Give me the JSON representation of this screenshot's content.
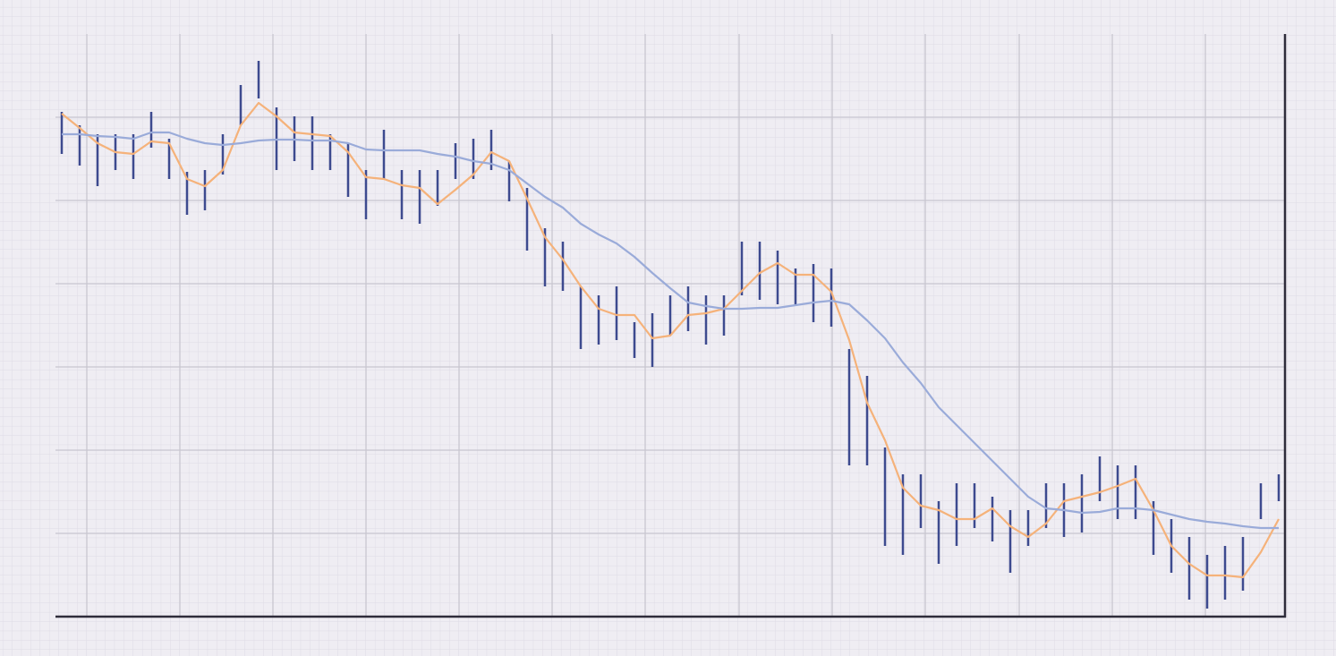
{
  "chart_data": {
    "type": "hilo",
    "x": [
      7,
      27,
      47,
      67,
      87,
      107,
      127,
      147,
      167,
      187,
      207,
      227,
      247,
      267,
      287,
      307,
      327,
      347,
      367,
      387,
      407,
      427,
      447,
      467,
      487,
      507,
      527,
      547,
      567,
      587,
      607,
      627,
      647,
      667,
      687,
      707,
      727,
      747,
      767,
      787,
      807,
      827,
      847,
      867,
      887,
      907,
      927,
      947,
      967,
      987,
      1007,
      1027,
      1047,
      1067,
      1087,
      1107,
      1127,
      1147,
      1167,
      1187,
      1207,
      1227,
      1247,
      1267,
      1287,
      1307,
      1327,
      1347,
      1367
    ],
    "high": [
      564,
      549,
      539,
      539,
      539,
      564,
      534,
      497,
      499,
      539,
      594,
      621,
      569,
      559,
      559,
      539,
      529,
      499,
      544,
      499,
      499,
      499,
      529,
      534,
      544,
      509,
      479,
      434,
      419,
      369,
      359,
      369,
      329,
      339,
      359,
      369,
      359,
      359,
      419,
      419,
      409,
      389,
      394,
      389,
      299,
      269,
      189,
      159,
      159,
      129,
      149,
      149,
      134,
      119,
      119,
      149,
      149,
      159,
      179,
      169,
      169,
      129,
      109,
      89,
      69,
      79,
      89,
      149,
      159
    ],
    "low": [
      517,
      504,
      481,
      499,
      489,
      524,
      489,
      449,
      454,
      494,
      549,
      579,
      499,
      509,
      499,
      499,
      469,
      444,
      489,
      444,
      439,
      459,
      489,
      489,
      499,
      464,
      409,
      369,
      364,
      299,
      304,
      309,
      289,
      279,
      314,
      319,
      304,
      314,
      359,
      354,
      349,
      349,
      329,
      324,
      169,
      169,
      79,
      69,
      99,
      59,
      79,
      99,
      84,
      49,
      79,
      99,
      89,
      94,
      129,
      109,
      109,
      69,
      49,
      19,
      9,
      19,
      29,
      109,
      129
    ],
    "color": "#3d4a8f",
    "lines": [
      {
        "color": "#f5b27a",
        "values": [
          562,
          546,
          529,
          519,
          517,
          531,
          529,
          489,
          481,
          499,
          549,
          574,
          559,
          541,
          539,
          537,
          519,
          491,
          489,
          482,
          479,
          461,
          477,
          494,
          519,
          509,
          467,
          424,
          399,
          369,
          344,
          337,
          337,
          311,
          314,
          337,
          339,
          344,
          364,
          384,
          395,
          382,
          382,
          363,
          309,
          239,
          197,
          144,
          124,
          119,
          109,
          109,
          121,
          101,
          89,
          104,
          129,
          134,
          139,
          146,
          154,
          119,
          79,
          59,
          46,
          46,
          44,
          72,
          109
        ]
      },
      {
        "color": "#9aabd9",
        "values": [
          539,
          539,
          537,
          536,
          534,
          541,
          541,
          534,
          529,
          527,
          529,
          532,
          533,
          533,
          532,
          532,
          529,
          522,
          521,
          521,
          521,
          517,
          514,
          509,
          506,
          499,
          484,
          469,
          457,
          439,
          427,
          417,
          402,
          384,
          367,
          351,
          347,
          344,
          344,
          345,
          345,
          348,
          351,
          353,
          349,
          331,
          311,
          284,
          261,
          234,
          214,
          194,
          174,
          154,
          134,
          121,
          119,
          116,
          117,
          121,
          121,
          119,
          114,
          109,
          106,
          104,
          101,
          99,
          99
        ]
      }
    ],
    "xlim": [
      0,
      1374
    ],
    "xticks": [
      35,
      139,
      243,
      347,
      451,
      555,
      659,
      764,
      868,
      972,
      1077,
      1181,
      1285
    ],
    "ylim": [
      0,
      651
    ],
    "yticks": [
      93,
      186,
      279,
      372,
      465,
      558
    ],
    "grid": true
  }
}
